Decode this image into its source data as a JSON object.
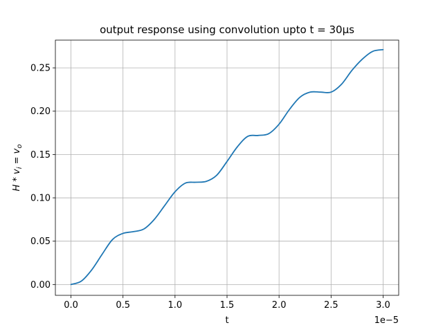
{
  "chart_data": {
    "type": "line",
    "title": "output response using convolution upto t = 30µs",
    "xlabel": "t",
    "ylabel_parts": {
      "base1": "H",
      "op": " * ",
      "base2": "v",
      "sub2": "i",
      "eq": " = ",
      "base3": "v",
      "sub3": "o"
    },
    "x_offset_label": "1e−5",
    "x_scale": 1e-05,
    "xlim": [
      -0.15,
      3.15
    ],
    "ylim": [
      -0.0125,
      0.282
    ],
    "xticks": [
      0.0,
      0.5,
      1.0,
      1.5,
      2.0,
      2.5,
      3.0
    ],
    "xtick_labels": [
      "0.0",
      "0.5",
      "1.0",
      "1.5",
      "2.0",
      "2.5",
      "3.0"
    ],
    "yticks": [
      0.0,
      0.05,
      0.1,
      0.15,
      0.2,
      0.25
    ],
    "ytick_labels": [
      "0.00",
      "0.05",
      "0.10",
      "0.15",
      "0.20",
      "0.25"
    ],
    "grid": true,
    "series": [
      {
        "color": "#1f77b4",
        "x": [
          0.0,
          0.1,
          0.2,
          0.3,
          0.4,
          0.5,
          0.6,
          0.7,
          0.8,
          0.9,
          1.0,
          1.1,
          1.2,
          1.3,
          1.4,
          1.5,
          1.6,
          1.7,
          1.8,
          1.9,
          2.0,
          2.1,
          2.2,
          2.3,
          2.4,
          2.5,
          2.6,
          2.7,
          2.8,
          2.9,
          3.0
        ],
        "y": [
          0.0,
          0.004,
          0.017,
          0.035,
          0.052,
          0.059,
          0.061,
          0.064,
          0.075,
          0.091,
          0.107,
          0.117,
          0.118,
          0.119,
          0.126,
          0.142,
          0.159,
          0.171,
          0.172,
          0.174,
          0.185,
          0.202,
          0.216,
          0.222,
          0.222,
          0.222,
          0.231,
          0.247,
          0.26,
          0.269,
          0.271
        ]
      }
    ]
  }
}
